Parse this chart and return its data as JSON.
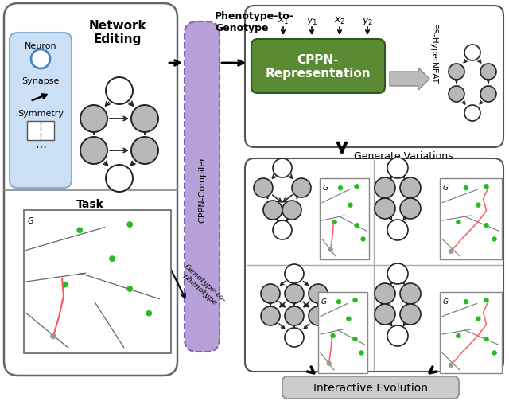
{
  "left_panel_title": "Network\nEditing",
  "compiler_label": "CPPN-Compiler",
  "cppn_label": "CPPN-\nRepresentation",
  "generate_variations": "Generate Variations",
  "interactive_evolution": "Interactive Evolution",
  "es_hyperneat": "ES-HyperNEAT",
  "purple_color": "#a898cc",
  "gray_node": "#b8b8b8",
  "white_node": "#ffffff",
  "green_dot": "#22bb22",
  "green_box": "#5a8a32"
}
